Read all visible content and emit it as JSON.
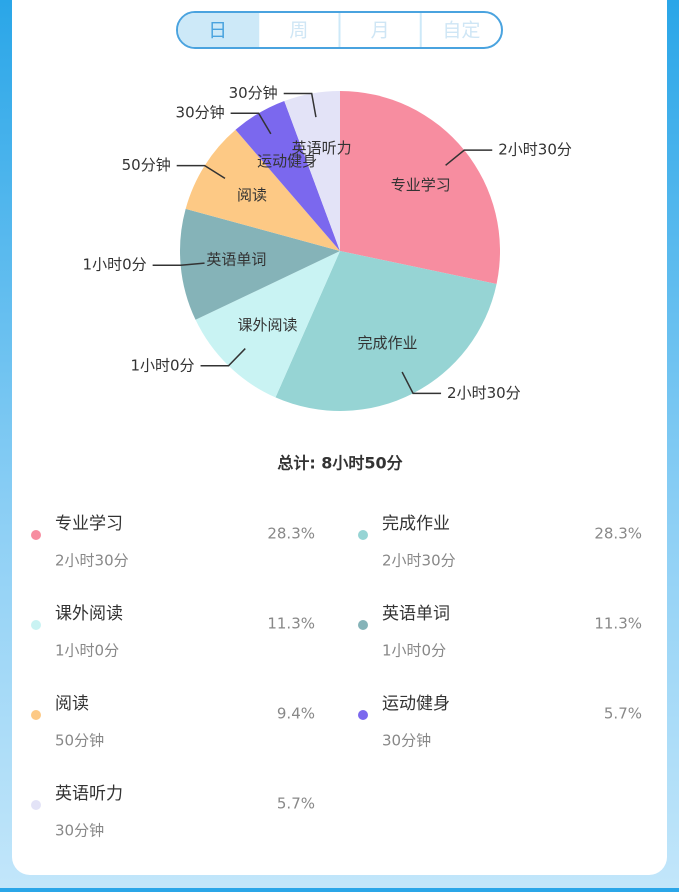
{
  "tabs": [
    "日",
    "周",
    "月",
    "自定"
  ],
  "selected_tab": 0,
  "chart_data": {
    "type": "pie",
    "categories": [
      "专业学习",
      "完成作业",
      "课外阅读",
      "英语单词",
      "阅读",
      "运动健身",
      "英语听力"
    ],
    "values": [
      150,
      150,
      60,
      60,
      50,
      30,
      30
    ],
    "value_labels": [
      "2小时30分",
      "2小时30分",
      "1小时0分",
      "1小时0分",
      "50分钟",
      "30分钟",
      "30分钟"
    ],
    "percents": [
      "28.3%",
      "28.3%",
      "11.3%",
      "11.3%",
      "9.4%",
      "5.7%",
      "5.7%"
    ],
    "colors": [
      "#f78da0",
      "#96d4d4",
      "#c9f3f3",
      "#85b3b8",
      "#fdc985",
      "#7b68ee",
      "#e3e3f7"
    ],
    "total": "总计: 8小时50分"
  }
}
